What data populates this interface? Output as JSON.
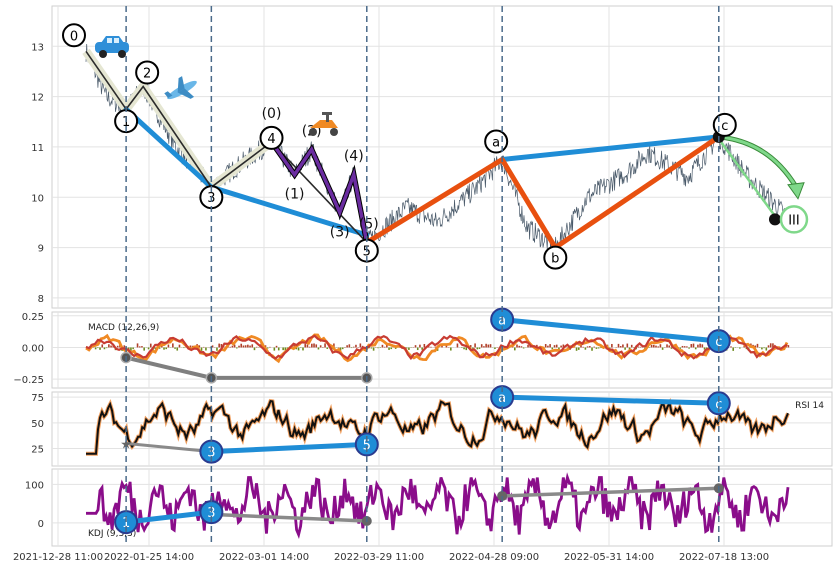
{
  "chart_data": {
    "type": "line",
    "x_tick_labels": [
      "2021-12-28 11:00",
      "2022-01-25 14:00",
      "2022-03-01 14:00",
      "2022-03-29 11:00",
      "2022-04-28 09:00",
      "2022-05-31 14:00",
      "2022-07-18 13:00"
    ],
    "panels": {
      "price": {
        "yticks": [
          "8",
          "9",
          "10",
          "11",
          "12",
          "13"
        ],
        "ylim": [
          7.8,
          13.8
        ],
        "grid": true,
        "impulse_wave": [
          {
            "label": "0",
            "x": 0,
            "y": 12.9
          },
          {
            "label": "1",
            "x": 40,
            "y": 11.75
          },
          {
            "label": "2",
            "x": 57,
            "y": 12.2
          },
          {
            "label": "3",
            "x": 125,
            "y": 10.2
          },
          {
            "label": "4",
            "x": 185,
            "y": 11.1
          },
          {
            "label": "5",
            "x": 280,
            "y": 9.1
          }
        ],
        "subwave": [
          {
            "label": "(0)",
            "x": 185,
            "y": 11.1
          },
          {
            "label": "(1)",
            "x": 208,
            "y": 10.45
          },
          {
            "label": "(2)",
            "x": 225,
            "y": 10.95
          },
          {
            "label": "(3)",
            "x": 253,
            "y": 9.7
          },
          {
            "label": "(4)",
            "x": 267,
            "y": 10.45
          },
          {
            "label": "(5)",
            "x": 280,
            "y": 9.1
          }
        ],
        "correction_wave": [
          {
            "label": "5",
            "x": 280,
            "y": 9.1
          },
          {
            "label": "a",
            "x": 415,
            "y": 10.75
          },
          {
            "label": "b",
            "x": 468,
            "y": 9.0
          },
          {
            "label": "c",
            "x": 631,
            "y": 11.2
          }
        ],
        "trend_lines": [
          {
            "from": {
              "x": 40,
              "y": 11.75
            },
            "to": {
              "x": 125,
              "y": 10.2
            }
          },
          {
            "from": {
              "x": 125,
              "y": 10.2
            },
            "to": {
              "x": 280,
              "y": 9.25
            }
          },
          {
            "from": {
              "x": 415,
              "y": 10.75
            },
            "to": {
              "x": 631,
              "y": 11.2
            }
          }
        ],
        "projection": {
          "label": "III",
          "from": {
            "x": 631,
            "y": 11.2
          },
          "to": {
            "x": 710,
            "y": 10.05
          },
          "target": {
            "x": 700,
            "y": 9.6
          }
        },
        "color_price": "#4a5a6a",
        "color_wave_main": "#1f8dd6",
        "color_wave_sub": "#6a2ca0",
        "color_wave_correction": "#e8500f",
        "color_projection": "#7fd88a"
      },
      "macd": {
        "label": "MACD (12,26,9)",
        "yticks": [
          "0.25",
          "0.00",
          "−0.25"
        ],
        "ylim": [
          -0.32,
          0.28
        ],
        "divergence": [
          {
            "label": "a",
            "x": 415,
            "y": 0.22
          },
          {
            "label": "c",
            "x": 631,
            "y": 0.05
          }
        ],
        "gray_markers": [
          {
            "x": 40,
            "y": -0.08
          },
          {
            "x": 125,
            "y": -0.24
          },
          {
            "x": 280,
            "y": -0.24
          }
        ]
      },
      "rsi": {
        "label": "RSI 14",
        "yticks": [
          "25",
          "50",
          "75"
        ],
        "ylim": [
          8,
          80
        ],
        "divergence_up": [
          {
            "label": "a",
            "x": 415,
            "y": 75
          },
          {
            "label": "c",
            "x": 631,
            "y": 69
          }
        ],
        "divergence_low": [
          {
            "label": "3",
            "x": 125,
            "y": 22
          },
          {
            "label": "5",
            "x": 280,
            "y": 29
          }
        ],
        "gray_marker": {
          "x": 40,
          "y": 30
        }
      },
      "kdj": {
        "label": "KDJ (9,3,3)",
        "yticks": [
          "100",
          "0"
        ],
        "ylim": [
          -60,
          140
        ],
        "divergence": [
          {
            "label": "1",
            "x": 40,
            "y": 2
          },
          {
            "label": "3",
            "x": 125,
            "y": 28
          }
        ],
        "gray_lines": [
          {
            "from": {
              "x": 125,
              "y": 22
            },
            "to": {
              "x": 280,
              "y": 5
            }
          },
          {
            "from": {
              "x": 415,
              "y": 70
            },
            "to": {
              "x": 631,
              "y": 90
            }
          }
        ]
      }
    }
  },
  "icons": [
    "car-icon",
    "airplane-icon",
    "scooter-icon"
  ]
}
